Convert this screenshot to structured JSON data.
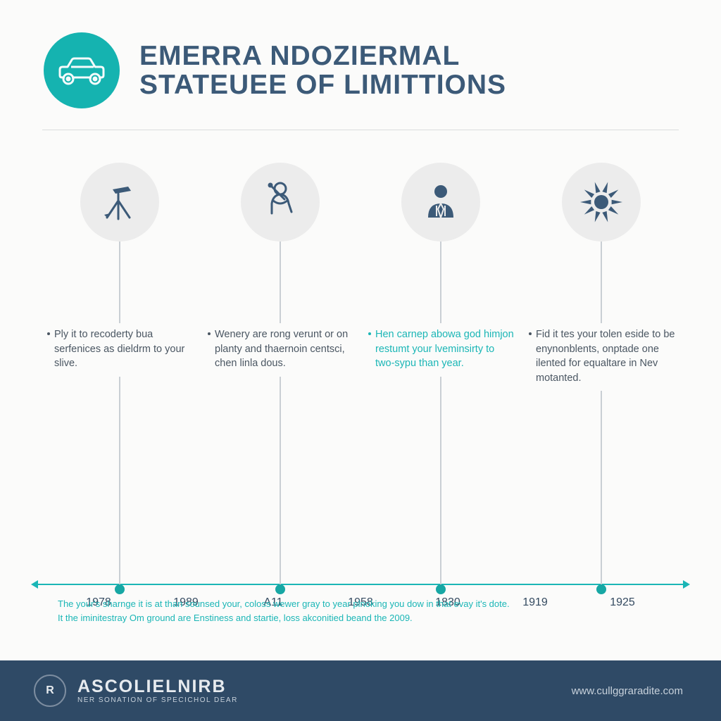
{
  "colors": {
    "page_bg": "#fbfbfa",
    "title": "#3c5a78",
    "text_body": "#4a5662",
    "text_accent": "#1bb6b6",
    "divider": "#d9dcde",
    "header_icon_bg": "#15b3b0",
    "header_icon_fg": "#f5fbfb",
    "col_icon_bg": "#ececec",
    "col_icon_fg": "#3c5a78",
    "vline": "#c9cfd4",
    "axis": "#1bb6b6",
    "node": "#17a7a4",
    "axis_label": "#344a60",
    "caption": "#1bb6b6",
    "footer_bg": "#2f4a66",
    "footer_fg": "#e7ebef",
    "footer_url": "#c7d1db"
  },
  "header": {
    "title_line1": "EMERRA NDOZIERMAL",
    "title_line2": "STATEUEE OF LIMITTIONS",
    "title_fontsize": 39,
    "icon": "car"
  },
  "timeline": {
    "type": "timeline-infographic",
    "axis_labels": [
      "1978",
      "1989",
      "A11",
      "1958",
      "1830",
      "1919",
      "1925"
    ],
    "columns": [
      {
        "icon": "tripod",
        "text_color": "body",
        "bullets": [
          "Ply it to recoderty bua serfenices as dieldrm to your slive."
        ]
      },
      {
        "icon": "patient",
        "text_color": "body",
        "bullets": [
          "Wenery are rong verunt or on planty and thaernoin centsci, chen linla dous."
        ]
      },
      {
        "icon": "businessman",
        "text_color": "accent",
        "bullets": [
          "Hen carnep abowa god himjon restumt your lveminsirty to two-sypu than year."
        ]
      },
      {
        "icon": "sun",
        "text_color": "body",
        "bullets": [
          "Fid it tes your tolen eside to be enynonblents, onptade one ilented for equaltare in Nev motanted."
        ]
      }
    ]
  },
  "caption": {
    "line1": "The your's sharnge it is at than sounsed your, coloss wewer gray to year plnoking you dow in that evay it's dote.",
    "line2": "It the iminitestray Om ground are Enstiness and startie, loss akconitied beand the 2009."
  },
  "footer": {
    "badge_text": "R",
    "brand_main": "ASCOLIELNIRB",
    "brand_sub": "NER SONATION OF SPECICHOL DEAR",
    "url": "www.cullggraradite.com",
    "brand_fontsize": 25
  }
}
